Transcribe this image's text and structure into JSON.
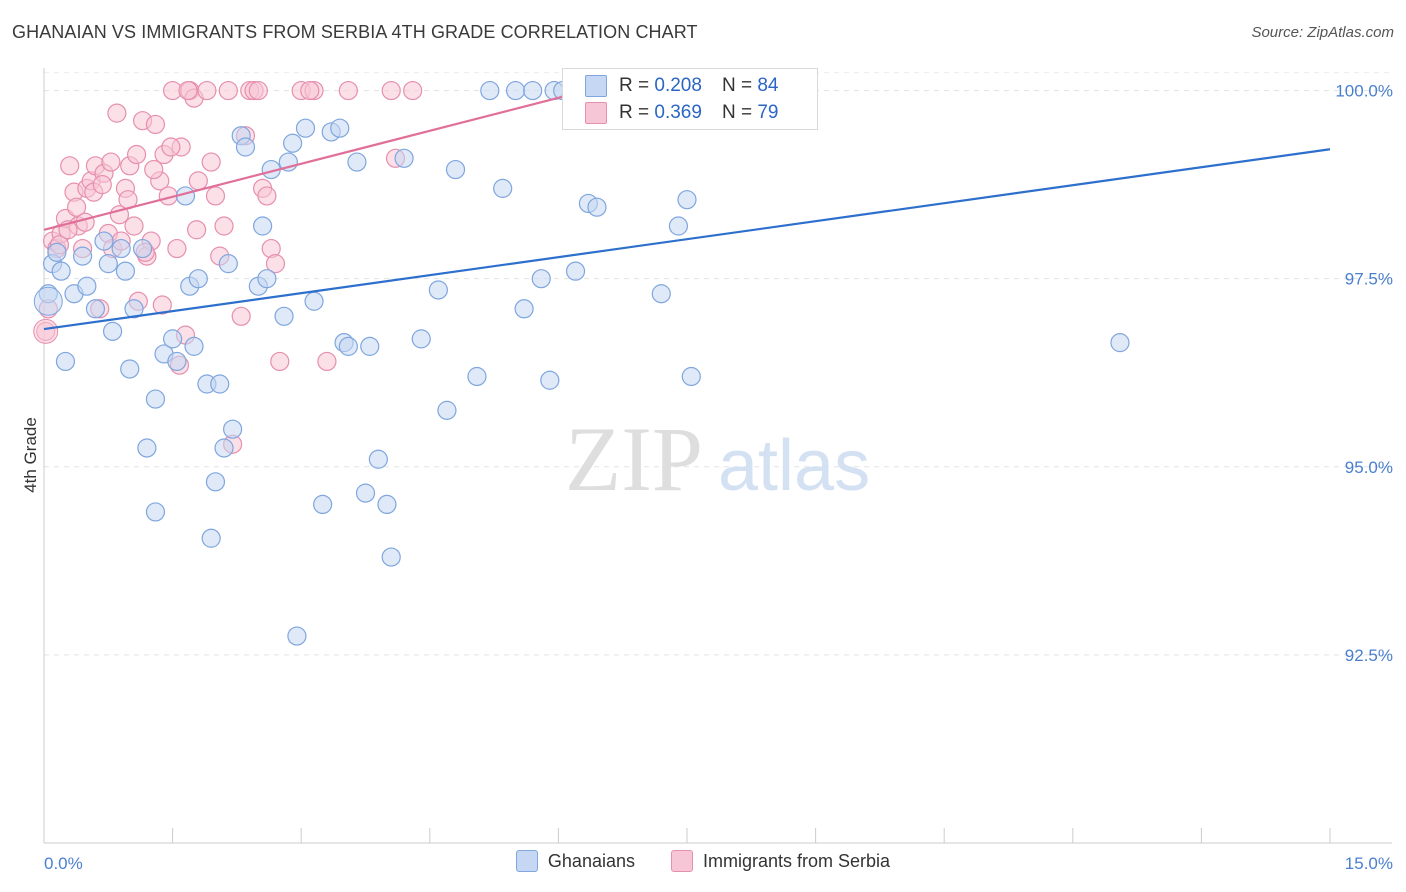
{
  "title": "GHANAIAN VS IMMIGRANTS FROM SERBIA 4TH GRADE CORRELATION CHART",
  "source": "Source: ZipAtlas.com",
  "watermark": {
    "zip": "ZIP",
    "atlas": "atlas"
  },
  "stats": {
    "blue": {
      "r_label": "R =",
      "r_value": "0.208",
      "n_label": "N =",
      "n_value": "84"
    },
    "pink": {
      "r_label": "R =",
      "r_value": "0.369",
      "n_label": "N =",
      "n_value": "79"
    }
  },
  "legend": {
    "blue": "Ghanaians",
    "pink": "Immigrants from Serbia"
  },
  "colors": {
    "blue_fill": "#c5d7f2",
    "blue_stroke": "#7fa6de",
    "blue_line": "#2d6fcc",
    "pink_fill": "#f7c6d6",
    "pink_stroke": "#e68fae",
    "pink_line": "#e07099",
    "tick_label": "#4a7fcf"
  },
  "chart_data": {
    "type": "scatter",
    "title": "GHANAIAN VS IMMIGRANTS FROM SERBIA 4TH GRADE CORRELATION CHART",
    "xlabel": "",
    "ylabel": "4th Grade",
    "xlim": [
      0,
      15
    ],
    "ylim": [
      90.0,
      100.3
    ],
    "x_tick_labels": [
      "0.0%",
      "15.0%"
    ],
    "y_ticks": [
      92.5,
      95.0,
      97.5,
      100.0
    ],
    "y_tick_labels": [
      "92.5%",
      "95.0%",
      "97.5%",
      "100.0%"
    ],
    "grid": true,
    "series": [
      {
        "name": "Ghanaians",
        "color": "#7fa6de",
        "trend": [
          [
            0,
            96.83
          ],
          [
            15,
            99.22
          ]
        ],
        "points": [
          [
            0.05,
            97.3
          ],
          [
            0.1,
            97.7
          ],
          [
            0.15,
            97.85
          ],
          [
            0.2,
            97.6
          ],
          [
            0.25,
            96.4
          ],
          [
            0.35,
            97.3
          ],
          [
            0.45,
            97.8
          ],
          [
            0.5,
            97.4
          ],
          [
            0.6,
            97.1
          ],
          [
            0.7,
            98.0
          ],
          [
            0.75,
            97.7
          ],
          [
            0.8,
            96.8
          ],
          [
            0.9,
            97.9
          ],
          [
            0.95,
            97.6
          ],
          [
            1.0,
            96.3
          ],
          [
            1.05,
            97.1
          ],
          [
            1.15,
            97.9
          ],
          [
            1.2,
            95.25
          ],
          [
            1.3,
            95.9
          ],
          [
            1.3,
            94.4
          ],
          [
            1.4,
            96.5
          ],
          [
            1.5,
            96.7
          ],
          [
            1.55,
            96.4
          ],
          [
            1.65,
            98.6
          ],
          [
            1.7,
            97.4
          ],
          [
            1.75,
            96.6
          ],
          [
            1.8,
            97.5
          ],
          [
            1.9,
            96.1
          ],
          [
            1.95,
            94.05
          ],
          [
            2.0,
            94.8
          ],
          [
            2.05,
            96.1
          ],
          [
            2.1,
            95.25
          ],
          [
            2.15,
            97.7
          ],
          [
            2.2,
            95.5
          ],
          [
            2.3,
            99.4
          ],
          [
            2.35,
            99.25
          ],
          [
            2.5,
            97.4
          ],
          [
            2.55,
            98.2
          ],
          [
            2.6,
            97.5
          ],
          [
            2.65,
            98.95
          ],
          [
            2.8,
            97.0
          ],
          [
            2.85,
            99.05
          ],
          [
            2.9,
            99.3
          ],
          [
            2.95,
            92.75
          ],
          [
            3.05,
            99.5
          ],
          [
            3.15,
            97.2
          ],
          [
            3.25,
            94.5
          ],
          [
            3.35,
            99.45
          ],
          [
            3.45,
            99.5
          ],
          [
            3.5,
            96.65
          ],
          [
            3.55,
            96.6
          ],
          [
            3.65,
            99.05
          ],
          [
            3.75,
            94.65
          ],
          [
            3.8,
            96.6
          ],
          [
            3.9,
            95.1
          ],
          [
            4.0,
            94.5
          ],
          [
            4.05,
            93.8
          ],
          [
            4.2,
            99.1
          ],
          [
            4.4,
            96.7
          ],
          [
            4.6,
            97.35
          ],
          [
            4.7,
            95.75
          ],
          [
            4.8,
            98.95
          ],
          [
            5.05,
            96.2
          ],
          [
            5.2,
            100.0
          ],
          [
            5.35,
            98.7
          ],
          [
            5.5,
            100.0
          ],
          [
            5.6,
            97.1
          ],
          [
            5.7,
            100.0
          ],
          [
            5.8,
            97.5
          ],
          [
            5.9,
            96.15
          ],
          [
            5.95,
            100.0
          ],
          [
            6.05,
            100.0
          ],
          [
            6.2,
            97.6
          ],
          [
            6.35,
            98.5
          ],
          [
            6.45,
            98.45
          ],
          [
            6.9,
            99.7
          ],
          [
            7.2,
            97.3
          ],
          [
            7.4,
            98.2
          ],
          [
            7.45,
            100.0
          ],
          [
            7.5,
            98.55
          ],
          [
            7.55,
            96.2
          ],
          [
            7.7,
            99.9
          ],
          [
            7.95,
            100.0
          ],
          [
            12.55,
            96.65
          ]
        ]
      },
      {
        "name": "Immigrants from Serbia",
        "color": "#e68fae",
        "trend": [
          [
            0,
            98.15
          ],
          [
            6.5,
            100.05
          ]
        ],
        "points": [
          [
            0.02,
            96.8
          ],
          [
            0.05,
            97.1
          ],
          [
            0.1,
            98.0
          ],
          [
            0.15,
            97.9
          ],
          [
            0.2,
            98.1
          ],
          [
            0.25,
            98.3
          ],
          [
            0.3,
            99.0
          ],
          [
            0.35,
            98.65
          ],
          [
            0.4,
            98.2
          ],
          [
            0.45,
            97.9
          ],
          [
            0.5,
            98.7
          ],
          [
            0.55,
            98.8
          ],
          [
            0.6,
            99.0
          ],
          [
            0.65,
            97.1
          ],
          [
            0.7,
            98.9
          ],
          [
            0.75,
            98.1
          ],
          [
            0.8,
            97.9
          ],
          [
            0.85,
            99.7
          ],
          [
            0.9,
            98.0
          ],
          [
            0.95,
            98.7
          ],
          [
            1.0,
            99.0
          ],
          [
            1.05,
            98.2
          ],
          [
            1.1,
            97.2
          ],
          [
            1.15,
            99.6
          ],
          [
            1.2,
            97.8
          ],
          [
            1.25,
            98.0
          ],
          [
            1.3,
            99.55
          ],
          [
            1.35,
            98.8
          ],
          [
            1.4,
            99.15
          ],
          [
            1.45,
            98.6
          ],
          [
            1.5,
            100.0
          ],
          [
            1.55,
            97.9
          ],
          [
            1.6,
            99.25
          ],
          [
            1.65,
            96.75
          ],
          [
            1.7,
            100.0
          ],
          [
            1.75,
            99.9
          ],
          [
            1.8,
            98.8
          ],
          [
            1.9,
            100.0
          ],
          [
            1.95,
            99.05
          ],
          [
            2.0,
            98.6
          ],
          [
            2.05,
            97.8
          ],
          [
            2.1,
            98.2
          ],
          [
            2.15,
            100.0
          ],
          [
            2.2,
            95.3
          ],
          [
            2.3,
            97.0
          ],
          [
            2.35,
            99.4
          ],
          [
            2.4,
            100.0
          ],
          [
            2.45,
            100.0
          ],
          [
            2.5,
            100.0
          ],
          [
            2.55,
            98.7
          ],
          [
            2.6,
            98.6
          ],
          [
            2.65,
            97.9
          ],
          [
            2.7,
            97.7
          ],
          [
            2.75,
            96.4
          ],
          [
            3.0,
            100.0
          ],
          [
            3.15,
            100.0
          ],
          [
            3.3,
            96.4
          ],
          [
            3.55,
            100.0
          ],
          [
            4.3,
            100.0
          ],
          [
            4.1,
            99.1
          ],
          [
            0.18,
            97.95
          ],
          [
            0.28,
            98.15
          ],
          [
            0.38,
            98.45
          ],
          [
            0.48,
            98.25
          ],
          [
            0.58,
            98.65
          ],
          [
            0.68,
            98.75
          ],
          [
            0.78,
            99.05
          ],
          [
            0.88,
            98.35
          ],
          [
            0.98,
            98.55
          ],
          [
            1.08,
            99.15
          ],
          [
            1.18,
            97.85
          ],
          [
            1.28,
            98.95
          ],
          [
            1.38,
            97.15
          ],
          [
            1.48,
            99.25
          ],
          [
            1.58,
            96.35
          ],
          [
            1.68,
            100.0
          ],
          [
            1.78,
            98.15
          ],
          [
            3.1,
            100.0
          ],
          [
            4.05,
            100.0
          ]
        ]
      }
    ]
  }
}
